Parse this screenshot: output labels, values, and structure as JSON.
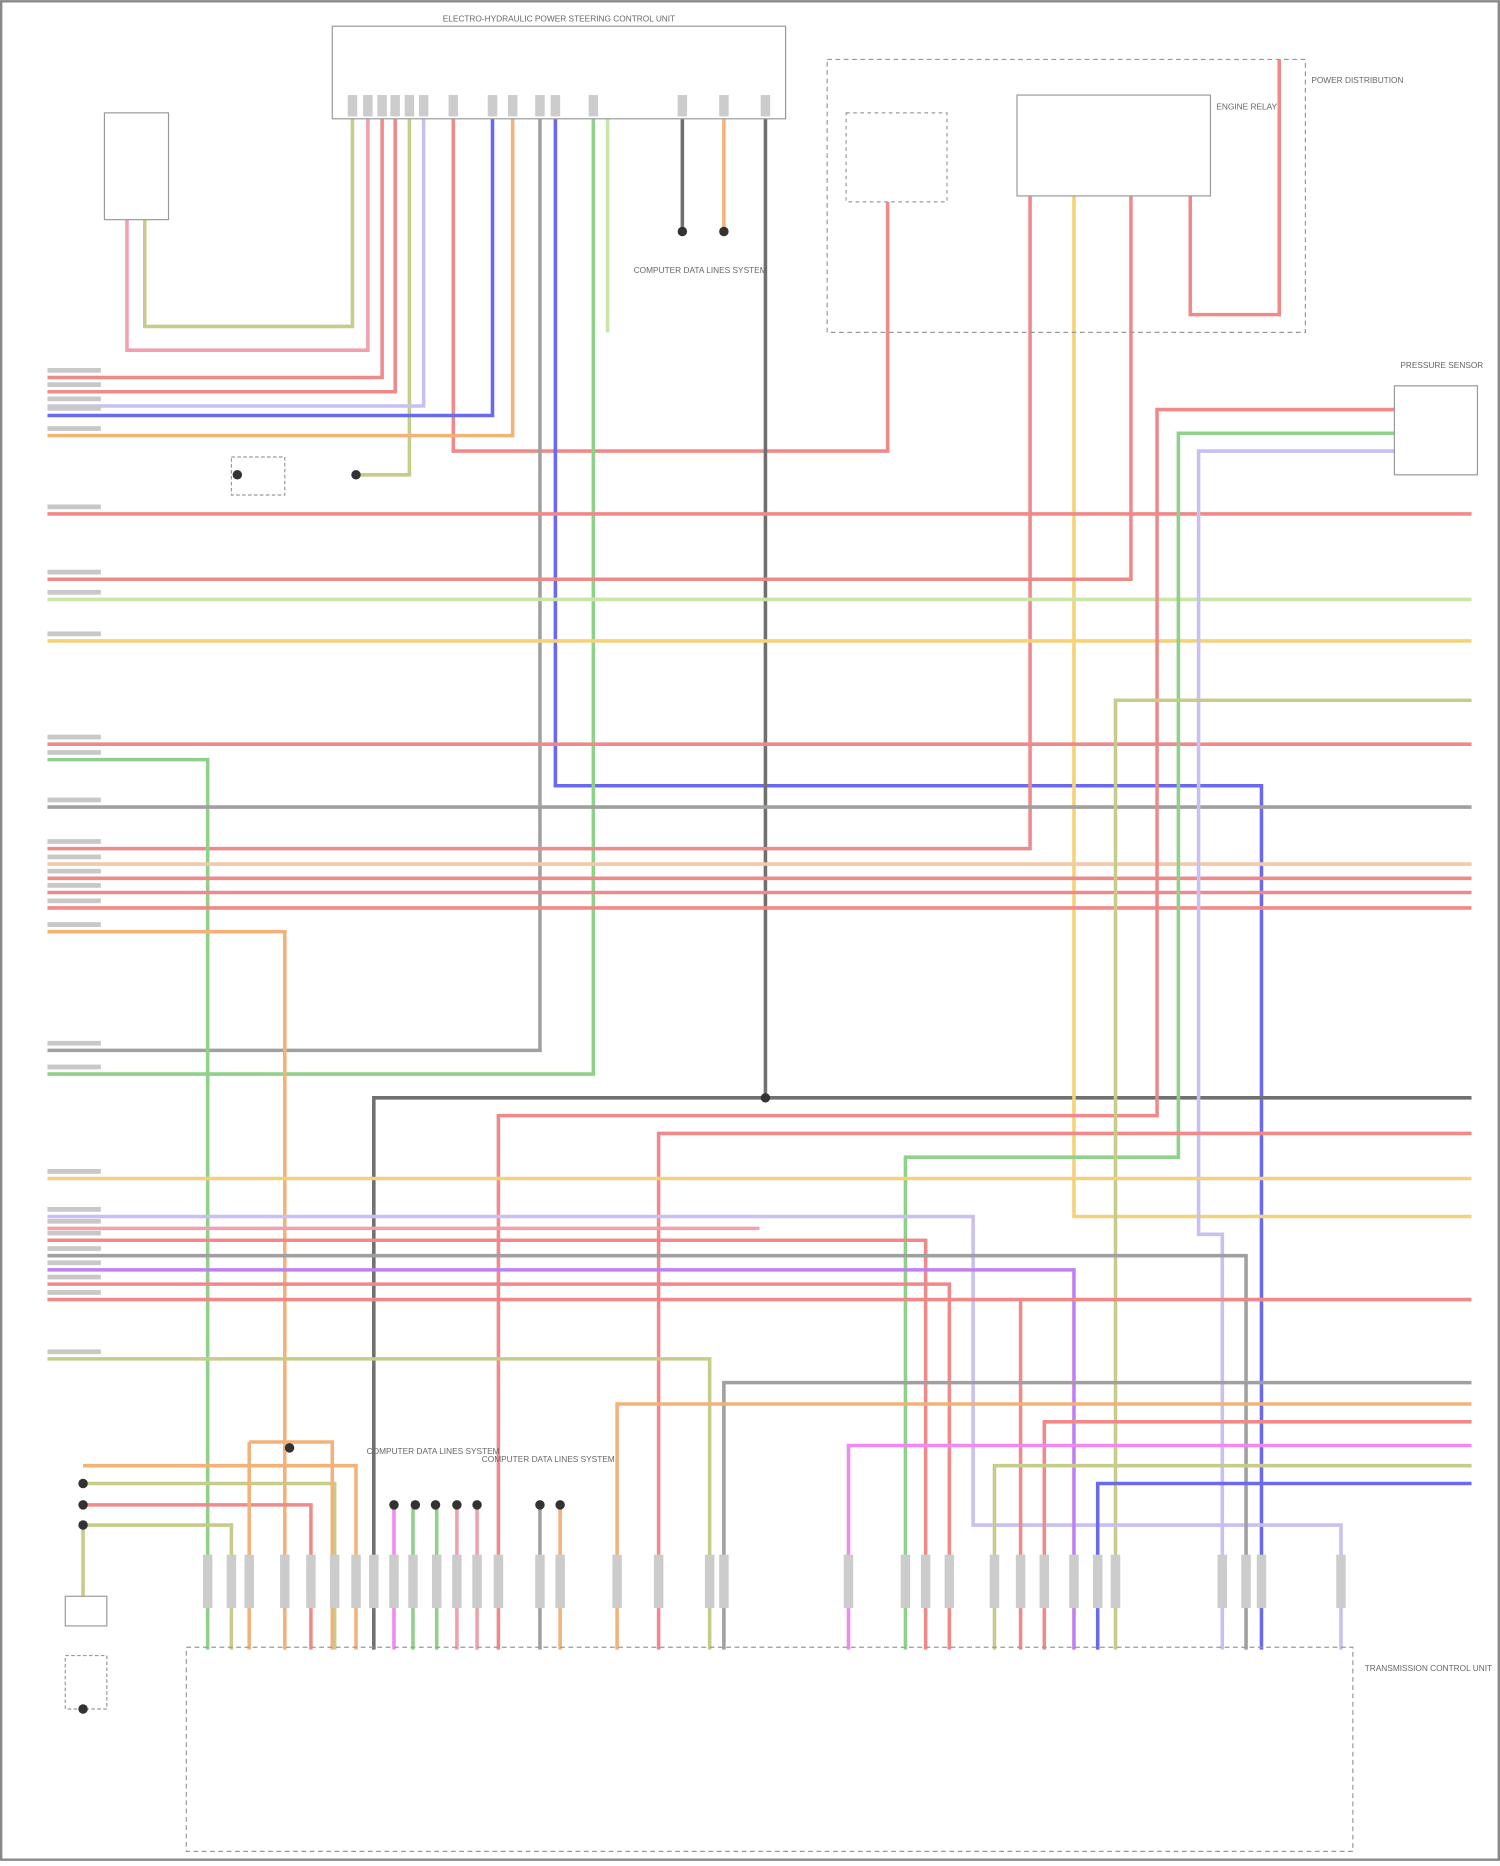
{
  "diagram": {
    "components": {
      "top_module": "ELECTRO-HYDRAULIC POWER STEERING CONTROL UNIT",
      "bottom_module": "TRANSMISSION CONTROL UNIT",
      "data_lines_top": "COMPUTER DATA LINES SYSTEM",
      "data_lines_bottom_1": "COMPUTER DATA LINES SYSTEM",
      "data_lines_bottom_2": "COMPUTER DATA LINES SYSTEM",
      "power_box": "POWER DISTRIBUTION",
      "relay": "ENGINE RELAY",
      "pressure_sensor": "PRESSURE SENSOR"
    },
    "wire_colors": {
      "red": "#f08a8a",
      "pink": "#f2a0b0",
      "green": "#8fd08a",
      "light_green": "#c9e6a8",
      "olive": "#c8cc8a",
      "yellow": "#f5d27a",
      "orange": "#f2b27a",
      "blue": "#6a6af0",
      "lavender": "#c8c0f2",
      "violet": "#c080f0",
      "magenta": "#f08af0",
      "gray": "#a0a0a0",
      "dark_gray": "#707070",
      "peach": "#f5c8a8"
    },
    "frame_color": "#9a9a9a"
  }
}
